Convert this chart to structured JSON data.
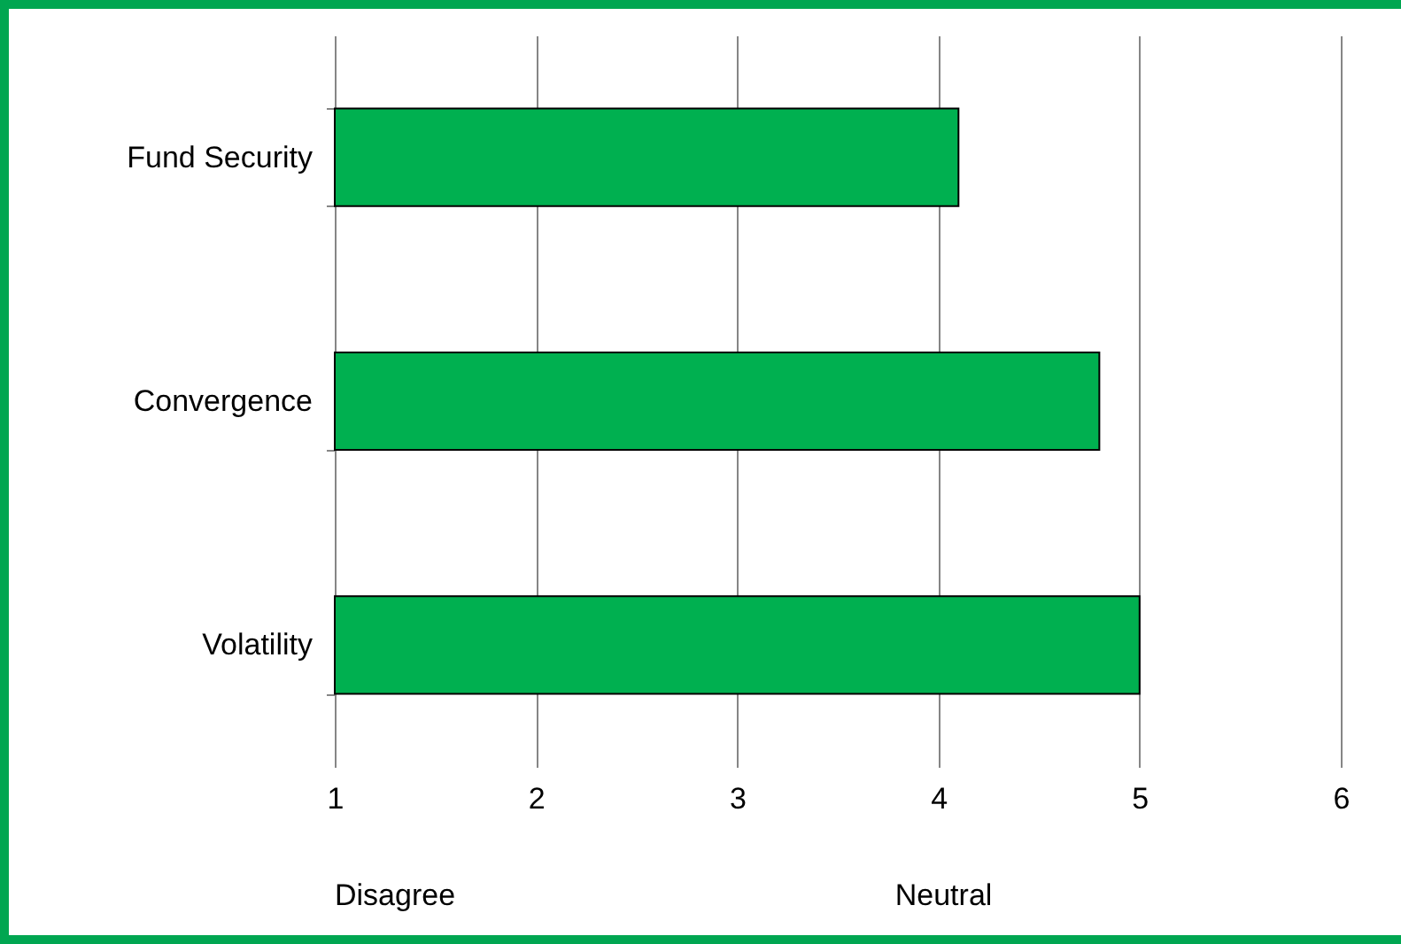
{
  "chart_data": {
    "type": "bar",
    "orientation": "horizontal",
    "categories": [
      "Fund Security",
      "Convergence",
      "Volatility"
    ],
    "values": [
      4.1,
      4.8,
      5.0
    ],
    "color": "#00b050",
    "xlim": [
      1,
      6
    ],
    "xticks": [
      1,
      2,
      3,
      4,
      5,
      6
    ],
    "grid": "x",
    "annotations": [
      "Disagree",
      "Neutral"
    ]
  }
}
